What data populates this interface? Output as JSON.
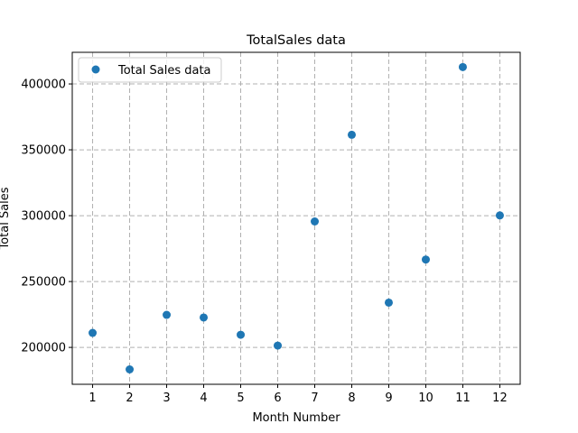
{
  "chart_data": {
    "type": "scatter",
    "title": "TotalSales data",
    "xlabel": "Month Number",
    "ylabel": "Total Sales",
    "x": [
      1,
      2,
      3,
      4,
      5,
      6,
      7,
      8,
      9,
      10,
      11,
      12
    ],
    "series": [
      {
        "name": "Total Sales data",
        "values": [
          211000,
          183300,
          224700,
          222700,
          209600,
          201400,
          295600,
          361400,
          234000,
          266700,
          412800,
          300200
        ],
        "color": "#1f77b4"
      }
    ],
    "xlim": [
      0.45,
      12.55
    ],
    "ylim": [
      172000,
      424000
    ],
    "xticks": [
      1,
      2,
      3,
      4,
      5,
      6,
      7,
      8,
      9,
      10,
      11,
      12
    ],
    "xtick_labels": [
      "1",
      "2",
      "3",
      "4",
      "5",
      "6",
      "7",
      "8",
      "9",
      "10",
      "11",
      "12"
    ],
    "yticks": [
      200000,
      250000,
      300000,
      350000,
      400000
    ],
    "ytick_labels": [
      "200000",
      "250000",
      "300000",
      "350000",
      "400000"
    ],
    "grid": true,
    "legend_position": "top-left"
  }
}
